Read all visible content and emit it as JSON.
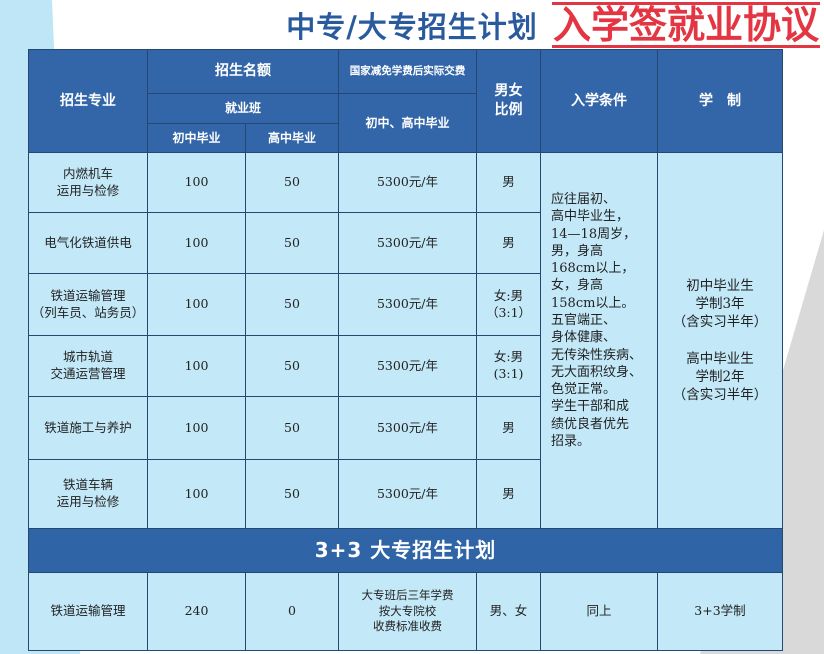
{
  "title": "中专/大专招生计划",
  "header": {
    "major": "招生专业",
    "quota": "招生名额",
    "fee": "国家减免学费后实际交费",
    "employment": "就业班",
    "junior": "初中毕业",
    "senior": "高中毕业",
    "fee_sub": "初中、高中毕业",
    "ratio": "男女比例",
    "conditions": "入学条件",
    "system": "学　制"
  },
  "rows": [
    {
      "major": "内燃机车\n运用与检修",
      "junior": "100",
      "senior": "50",
      "fee": "5300元/年",
      "ratio": "男"
    },
    {
      "major": "电气化铁道供电",
      "junior": "100",
      "senior": "50",
      "fee": "5300元/年",
      "ratio": "男"
    },
    {
      "major": "铁道运输管理\n（列车员、站务员）",
      "junior": "100",
      "senior": "50",
      "fee": "5300元/年",
      "ratio": "女:男\n（3:1）"
    },
    {
      "major": "城市轨道\n交通运营管理",
      "junior": "100",
      "senior": "50",
      "fee": "5300元/年",
      "ratio": "女:男\n(3:1)"
    },
    {
      "major": "铁道施工与养护",
      "junior": "100",
      "senior": "50",
      "fee": "5300元/年",
      "ratio": "男"
    },
    {
      "major": "铁道车辆\n运用与检修",
      "junior": "100",
      "senior": "50",
      "fee": "5300元/年",
      "ratio": "男"
    }
  ],
  "conditions": "应往届初、\n高中毕业生，\n14—18周岁，\n男，身高\n168cm以上，\n女，身高\n158cm以上。\n五官端正、\n身体健康、\n无传染性疾病、\n无大面积纹身、\n色觉正常。\n学生干部和成\n绩优良者优先\n招录。",
  "system": "初中毕业生\n学制3年\n（含实习半年）\n\n高中毕业生\n学制2年\n（含实习半年）",
  "banner": "3+3 大专招生计划",
  "college_row": {
    "major": "铁道运输管理",
    "junior": "240",
    "senior": "0",
    "fee": "大专班后三年学费\n按大专院校\n收费标准收费",
    "ratio": "男、女",
    "conditions": "同上",
    "system": "3+3学制"
  },
  "stamp": "入学签就业协议",
  "colors": {
    "header": "#3366a8",
    "cell": "#c3e8f8",
    "stamp": "#e0202e",
    "title": "#2a5a9e"
  }
}
